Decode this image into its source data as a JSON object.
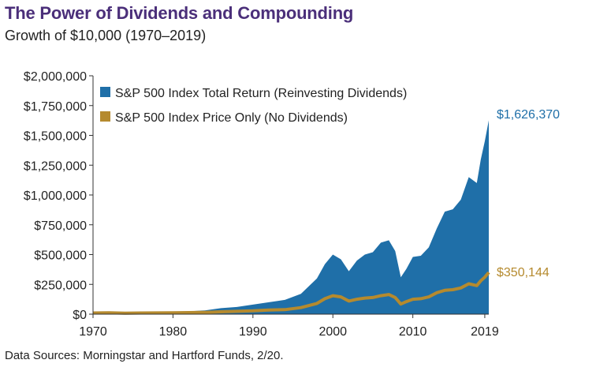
{
  "title": "The Power of Dividends and Compounding",
  "subtitle": "Growth of $10,000 (1970–2019)",
  "source": "Data Sources: Morningstar and Hartford Funds, 2/20.",
  "colors": {
    "total": "#1f6fa8",
    "price": "#b58a2e",
    "title": "#4b2f7a"
  },
  "chart_data": {
    "type": "area",
    "title": "The Power of Dividends and Compounding",
    "subtitle": "Growth of $10,000 (1970–2019)",
    "xlabel": "",
    "ylabel": "",
    "xlim": [
      1970,
      2019.5
    ],
    "ylim": [
      0,
      2000000
    ],
    "x_ticks": [
      "1970",
      "1980",
      "1990",
      "2000",
      "2010",
      "2019"
    ],
    "y_ticks": [
      "$0",
      "$250,000",
      "$500,000",
      "$750,000",
      "$1,000,000",
      "$1,250,000",
      "$1,500,000",
      "$1,750,000",
      "$2,000,000"
    ],
    "grid": false,
    "legend": "top-left",
    "series": [
      {
        "name": "S&P 500 Index Total Return (Reinvesting Dividends)",
        "end_label": "$1,626,370",
        "x": [
          1970,
          1972,
          1974,
          1976,
          1978,
          1980,
          1982,
          1984,
          1986,
          1988,
          1990,
          1992,
          1994,
          1996,
          1998,
          1999,
          2000,
          2001,
          2002,
          2003,
          2004,
          2005,
          2006,
          2007,
          2007.8,
          2008.5,
          2009.2,
          2010,
          2011,
          2012,
          2013,
          2014,
          2015,
          2016,
          2017,
          2018,
          2018.5,
          2019,
          2019.5
        ],
        "values": [
          10000,
          13000,
          10000,
          14000,
          15000,
          20000,
          24000,
          32000,
          50000,
          60000,
          80000,
          100000,
          120000,
          170000,
          300000,
          420000,
          500000,
          460000,
          360000,
          450000,
          500000,
          520000,
          600000,
          620000,
          530000,
          310000,
          380000,
          480000,
          490000,
          560000,
          720000,
          860000,
          880000,
          960000,
          1150000,
          1100000,
          1300000,
          1450000,
          1626370
        ]
      },
      {
        "name": "S&P 500 Index Price Only (No Dividends)",
        "end_label": "$350,144",
        "x": [
          1970,
          1972,
          1974,
          1976,
          1978,
          1980,
          1982,
          1984,
          1986,
          1988,
          1990,
          1992,
          1994,
          1996,
          1998,
          1999,
          2000,
          2001,
          2002,
          2003,
          2004,
          2005,
          2006,
          2007,
          2007.8,
          2008.5,
          2009.2,
          2010,
          2011,
          2012,
          2013,
          2014,
          2015,
          2016,
          2017,
          2018,
          2018.5,
          2019,
          2019.5
        ],
        "values": [
          10000,
          11000,
          8500,
          10000,
          10500,
          12000,
          13000,
          15000,
          20000,
          24000,
          28000,
          35000,
          38000,
          55000,
          90000,
          130000,
          155000,
          145000,
          110000,
          125000,
          135000,
          140000,
          155000,
          165000,
          140000,
          85000,
          105000,
          125000,
          130000,
          145000,
          180000,
          200000,
          205000,
          220000,
          255000,
          240000,
          280000,
          310000,
          350144
        ]
      }
    ]
  }
}
